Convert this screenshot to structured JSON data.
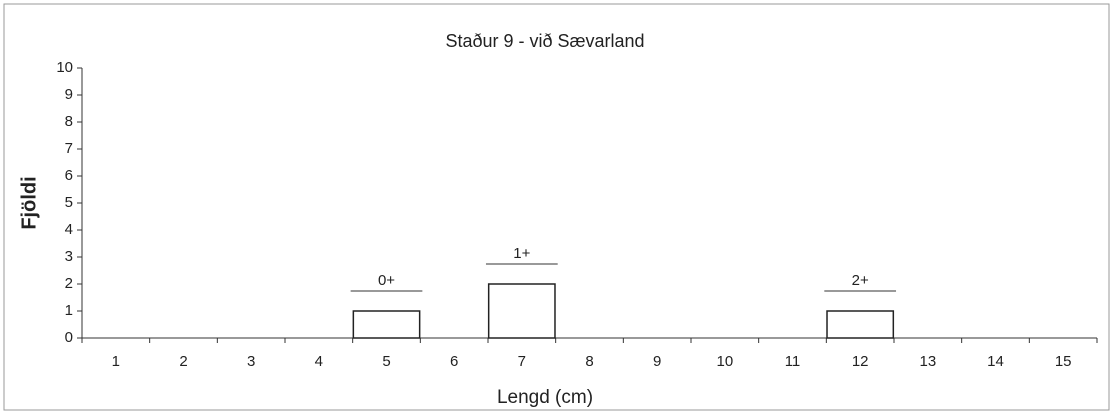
{
  "chart_data": {
    "type": "bar",
    "title": "Staður 9 - við Sævarland",
    "x_label": "Lengd (cm)",
    "y_label": "Fjöldi",
    "categories": [
      "1",
      "2",
      "3",
      "4",
      "5",
      "6",
      "7",
      "8",
      "9",
      "10",
      "11",
      "12",
      "13",
      "14",
      "15"
    ],
    "values": [
      0,
      0,
      0,
      0,
      1,
      0,
      2,
      0,
      0,
      0,
      0,
      1,
      0,
      0,
      0
    ],
    "color": "#ffffff",
    "ylim": [
      0,
      10
    ],
    "yticks": [
      0,
      1,
      2,
      3,
      4,
      5,
      6,
      7,
      8,
      9,
      10
    ],
    "grid": false,
    "annotations": [
      {
        "text": "0+",
        "category": "5"
      },
      {
        "text": "1+",
        "category": "7"
      },
      {
        "text": "2+",
        "category": "12"
      }
    ]
  }
}
